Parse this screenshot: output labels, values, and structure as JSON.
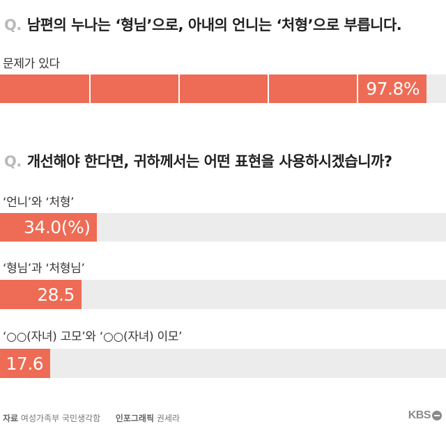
{
  "question1": {
    "mark": "Q.",
    "text": "남편의 누나는 ‘형님’으로, 아내의 언니는 ‘처형’으로 부릅니다."
  },
  "question2": {
    "mark": "Q.",
    "text": "개선해야 한다면, 귀하께서는 어떤 표현을 사용하시겠습니까?"
  },
  "colors": {
    "bar": "#ee6b55",
    "track": "#ececec",
    "text": "#222222"
  },
  "chart_data": [
    {
      "type": "bar",
      "orientation": "horizontal",
      "categories": [
        "문제가 있다"
      ],
      "values": [
        97.8
      ],
      "value_labels": [
        "97.8%"
      ],
      "xlim": [
        0,
        100
      ]
    },
    {
      "type": "bar",
      "orientation": "horizontal",
      "categories": [
        "‘언니’와 ‘처형’",
        "‘형님’과 ‘처형님’",
        "‘○○(자녀) 고모’와 ‘○○(자녀) 이모’"
      ],
      "values": [
        34.0,
        28.5,
        17.6
      ],
      "value_labels": [
        "34.0(%)",
        "28.5",
        "17.6"
      ],
      "xlim": [
        0,
        100
      ]
    }
  ],
  "footer": {
    "source_label": "자료",
    "source": "여성가족부 국민생각함",
    "graphic_label": "인포그래픽",
    "graphic": "권세라"
  },
  "logo": {
    "text": "KBS",
    "icon": "kbs-logo-icon"
  }
}
